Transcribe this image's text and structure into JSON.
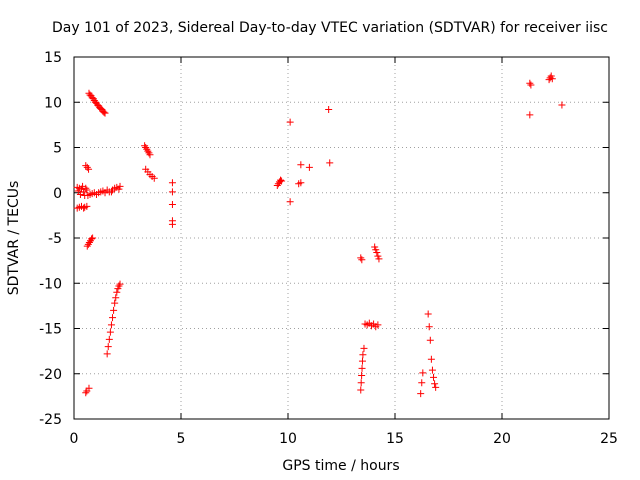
{
  "chart_data": {
    "type": "scatter",
    "title": "Day 101 of 2023, Sidereal Day-to-day VTEC variation (SDTVAR) for receiver iisc",
    "xlabel": "GPS time / hours",
    "ylabel": "SDTVAR / TECUs",
    "xlim": [
      0,
      25
    ],
    "ylim": [
      -25,
      15
    ],
    "xticks": [
      0,
      5,
      10,
      15,
      20,
      25
    ],
    "yticks": [
      -25,
      -20,
      -15,
      -10,
      -5,
      0,
      5,
      10,
      15
    ],
    "xtick_labels": [
      "0",
      "5",
      "10",
      "15",
      "20",
      "25"
    ],
    "ytick_labels": [
      "-25",
      "-20",
      "-15",
      "-10",
      "-5",
      "0",
      "5",
      "10",
      "15"
    ],
    "grid": true,
    "marker": "+",
    "color": "#ff0000",
    "series": [
      {
        "name": "SDTVAR",
        "points": [
          [
            0.15,
            0.6
          ],
          [
            0.2,
            0.2
          ],
          [
            0.25,
            0.5
          ],
          [
            0.3,
            -0.2
          ],
          [
            0.35,
            0.4
          ],
          [
            0.4,
            0.7
          ],
          [
            0.45,
            0.1
          ],
          [
            0.5,
            -0.3
          ],
          [
            0.55,
            0.5
          ],
          [
            0.6,
            0.3
          ],
          [
            0.15,
            -1.7
          ],
          [
            0.25,
            -1.6
          ],
          [
            0.35,
            -1.5
          ],
          [
            0.45,
            -1.7
          ],
          [
            0.5,
            -1.6
          ],
          [
            0.6,
            -1.5
          ],
          [
            0.55,
            -22.1
          ],
          [
            0.6,
            -21.9
          ],
          [
            0.7,
            -21.6
          ],
          [
            0.55,
            3.0
          ],
          [
            0.62,
            2.8
          ],
          [
            0.68,
            2.6
          ],
          [
            0.62,
            -5.9
          ],
          [
            0.67,
            -5.7
          ],
          [
            0.72,
            -5.5
          ],
          [
            0.77,
            -5.3
          ],
          [
            0.82,
            -5.1
          ],
          [
            0.87,
            -5.0
          ],
          [
            0.65,
            -0.3
          ],
          [
            0.75,
            -0.2
          ],
          [
            0.85,
            -0.1
          ],
          [
            0.95,
            0.0
          ],
          [
            1.05,
            -0.2
          ],
          [
            1.15,
            0.0
          ],
          [
            1.25,
            0.1
          ],
          [
            1.35,
            0.2
          ],
          [
            1.45,
            0.0
          ],
          [
            1.55,
            0.3
          ],
          [
            1.65,
            0.1
          ],
          [
            0.7,
            11.0
          ],
          [
            0.75,
            10.8
          ],
          [
            0.8,
            10.7
          ],
          [
            0.85,
            10.5
          ],
          [
            0.9,
            10.4
          ],
          [
            0.95,
            10.2
          ],
          [
            1.0,
            10.0
          ],
          [
            1.05,
            9.9
          ],
          [
            1.1,
            9.7
          ],
          [
            1.15,
            9.6
          ],
          [
            1.2,
            9.4
          ],
          [
            1.25,
            9.3
          ],
          [
            1.3,
            9.2
          ],
          [
            1.35,
            9.0
          ],
          [
            1.4,
            8.9
          ],
          [
            1.45,
            8.8
          ],
          [
            1.55,
            -17.8
          ],
          [
            1.6,
            -17.0
          ],
          [
            1.65,
            -16.2
          ],
          [
            1.7,
            -15.4
          ],
          [
            1.75,
            -14.6
          ],
          [
            1.8,
            -13.8
          ],
          [
            1.85,
            -13.0
          ],
          [
            1.9,
            -12.2
          ],
          [
            1.95,
            -11.6
          ],
          [
            2.0,
            -11.0
          ],
          [
            2.05,
            -10.6
          ],
          [
            2.1,
            -10.3
          ],
          [
            2.15,
            -10.1
          ],
          [
            1.75,
            0.1
          ],
          [
            1.8,
            0.3
          ],
          [
            1.9,
            0.5
          ],
          [
            2.0,
            0.6
          ],
          [
            2.1,
            0.4
          ],
          [
            2.15,
            0.7
          ],
          [
            3.3,
            5.2
          ],
          [
            3.35,
            5.0
          ],
          [
            3.4,
            4.8
          ],
          [
            3.45,
            4.6
          ],
          [
            3.5,
            4.4
          ],
          [
            3.55,
            4.2
          ],
          [
            3.35,
            2.6
          ],
          [
            3.45,
            2.3
          ],
          [
            3.55,
            2.0
          ],
          [
            3.65,
            1.8
          ],
          [
            3.75,
            1.6
          ],
          [
            4.6,
            1.1
          ],
          [
            4.6,
            0.1
          ],
          [
            4.6,
            -1.3
          ],
          [
            4.6,
            -3.1
          ],
          [
            4.6,
            -3.5
          ],
          [
            9.5,
            0.8
          ],
          [
            9.55,
            1.0
          ],
          [
            9.6,
            1.2
          ],
          [
            9.65,
            1.4
          ],
          [
            9.7,
            1.3
          ],
          [
            10.1,
            7.8
          ],
          [
            10.1,
            -1.0
          ],
          [
            10.5,
            1.0
          ],
          [
            10.6,
            3.1
          ],
          [
            10.6,
            1.1
          ],
          [
            11.0,
            2.8
          ],
          [
            11.9,
            9.2
          ],
          [
            11.95,
            3.3
          ],
          [
            13.4,
            -7.2
          ],
          [
            13.45,
            -7.4
          ],
          [
            13.4,
            -21.8
          ],
          [
            13.42,
            -21.0
          ],
          [
            13.44,
            -20.2
          ],
          [
            13.46,
            -19.4
          ],
          [
            13.48,
            -18.6
          ],
          [
            13.5,
            -17.9
          ],
          [
            13.55,
            -17.2
          ],
          [
            13.6,
            -14.5
          ],
          [
            13.7,
            -14.6
          ],
          [
            13.8,
            -14.4
          ],
          [
            13.9,
            -14.7
          ],
          [
            14.0,
            -14.5
          ],
          [
            14.1,
            -14.8
          ],
          [
            14.2,
            -14.6
          ],
          [
            14.05,
            -6.0
          ],
          [
            14.1,
            -6.3
          ],
          [
            14.15,
            -6.6
          ],
          [
            14.2,
            -7.0
          ],
          [
            14.25,
            -7.3
          ],
          [
            16.2,
            -22.2
          ],
          [
            16.25,
            -21.0
          ],
          [
            16.3,
            -19.9
          ],
          [
            16.55,
            -13.4
          ],
          [
            16.6,
            -14.8
          ],
          [
            16.65,
            -16.3
          ],
          [
            16.7,
            -18.4
          ],
          [
            16.75,
            -19.6
          ],
          [
            16.8,
            -20.4
          ],
          [
            16.85,
            -21.1
          ],
          [
            16.9,
            -21.5
          ],
          [
            21.3,
            12.1
          ],
          [
            21.35,
            11.9
          ],
          [
            21.3,
            8.6
          ],
          [
            22.2,
            12.5
          ],
          [
            22.25,
            12.7
          ],
          [
            22.3,
            12.9
          ],
          [
            22.35,
            12.6
          ],
          [
            22.8,
            9.7
          ]
        ]
      }
    ]
  }
}
